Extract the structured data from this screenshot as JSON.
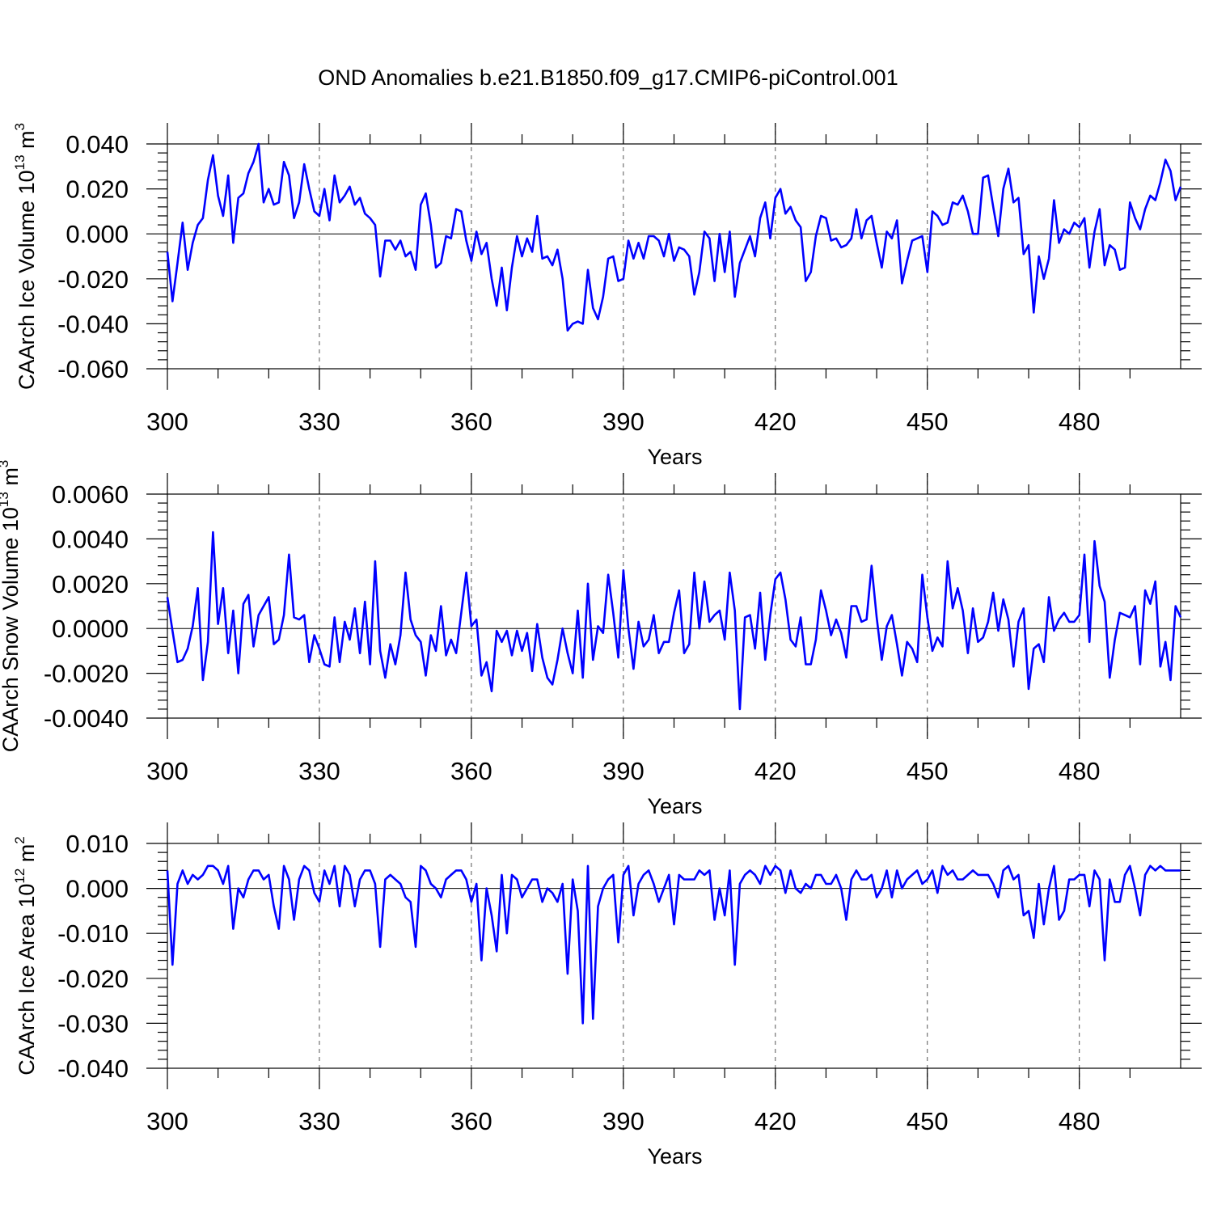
{
  "title": "OND Anomalies b.e21.B1850.f09_g17.CMIP6-piControl.001",
  "colors": {
    "series": "#0000ff",
    "axis": "#000000"
  },
  "chart_data": [
    {
      "type": "line",
      "title": "OND Anomalies b.e21.B1850.f09_g17.CMIP6-piControl.001",
      "xlabel": "Years",
      "ylabel_main": "CAArch Ice Volume 10",
      "ylabel_exp": "13",
      "ylabel_unit": " m",
      "ylabel_unit_exp": "3",
      "xlim": [
        300,
        500
      ],
      "ylim": [
        -0.06,
        0.04
      ],
      "xticks": [
        300,
        330,
        360,
        390,
        420,
        450,
        480
      ],
      "xtick_labels": [
        "300",
        "330",
        "360",
        "390",
        "420",
        "450",
        "480"
      ],
      "yticks": [
        -0.06,
        -0.04,
        -0.02,
        0.0,
        0.02,
        0.04
      ],
      "ytick_labels": [
        "-0.060",
        "-0.040",
        "-0.020",
        "0.000",
        "0.020",
        "0.040"
      ],
      "x_start": 300,
      "values": [
        -0.008,
        -0.03,
        -0.013,
        0.005,
        -0.016,
        -0.004,
        0.004,
        0.007,
        0.024,
        0.035,
        0.017,
        0.008,
        0.026,
        -0.004,
        0.016,
        0.018,
        0.027,
        0.032,
        0.04,
        0.014,
        0.02,
        0.013,
        0.014,
        0.032,
        0.026,
        0.007,
        0.014,
        0.031,
        0.02,
        0.01,
        0.008,
        0.02,
        0.006,
        0.026,
        0.014,
        0.017,
        0.021,
        0.013,
        0.016,
        0.009,
        0.007,
        0.004,
        -0.019,
        -0.003,
        -0.003,
        -0.007,
        -0.003,
        -0.01,
        -0.008,
        -0.016,
        0.013,
        0.018,
        0.004,
        -0.015,
        -0.013,
        -0.001,
        -0.002,
        0.011,
        0.01,
        -0.003,
        -0.012,
        0.001,
        -0.009,
        -0.004,
        -0.02,
        -0.032,
        -0.015,
        -0.034,
        -0.015,
        -0.001,
        -0.01,
        -0.002,
        -0.008,
        0.008,
        -0.011,
        -0.01,
        -0.014,
        -0.007,
        -0.02,
        -0.043,
        -0.04,
        -0.039,
        -0.04,
        -0.016,
        -0.033,
        -0.038,
        -0.028,
        -0.011,
        -0.01,
        -0.021,
        -0.02,
        -0.003,
        -0.011,
        -0.004,
        -0.011,
        -0.001,
        -0.001,
        -0.003,
        -0.01,
        0.0,
        -0.012,
        -0.006,
        -0.007,
        -0.01,
        -0.027,
        -0.017,
        0.001,
        -0.002,
        -0.021,
        0.0,
        -0.017,
        0.001,
        -0.028,
        -0.013,
        -0.007,
        -0.001,
        -0.01,
        0.007,
        0.014,
        -0.002,
        0.016,
        0.02,
        0.009,
        0.012,
        0.006,
        0.003,
        -0.021,
        -0.017,
        -0.001,
        0.008,
        0.007,
        -0.003,
        -0.002,
        -0.006,
        -0.005,
        -0.002,
        0.011,
        -0.002,
        0.006,
        0.008,
        -0.004,
        -0.015,
        0.001,
        -0.002,
        0.006,
        -0.022,
        -0.012,
        -0.003,
        -0.002,
        -0.001,
        -0.017,
        0.01,
        0.008,
        0.004,
        0.005,
        0.014,
        0.013,
        0.017,
        0.01,
        0.0,
        0.0,
        0.025,
        0.026,
        0.012,
        -0.001,
        0.02,
        0.029,
        0.014,
        0.016,
        -0.009,
        -0.005,
        -0.035,
        -0.01,
        -0.02,
        -0.011,
        0.015,
        -0.004,
        0.002,
        0.0,
        0.005,
        0.003,
        0.007,
        -0.015,
        0.001,
        0.011,
        -0.014,
        -0.005,
        -0.007,
        -0.016,
        -0.015,
        0.014,
        0.007,
        0.002,
        0.011,
        0.017,
        0.015,
        0.023,
        0.033,
        0.028,
        0.015,
        0.021
      ]
    },
    {
      "type": "line",
      "title": "",
      "xlabel": "Years",
      "ylabel_main": "CAArch Snow Volume 10",
      "ylabel_exp": "13",
      "ylabel_unit": " m",
      "ylabel_unit_exp": "3",
      "xlim": [
        300,
        500
      ],
      "ylim": [
        -0.004,
        0.006
      ],
      "xticks": [
        300,
        330,
        360,
        390,
        420,
        450,
        480
      ],
      "xtick_labels": [
        "300",
        "330",
        "360",
        "390",
        "420",
        "450",
        "480"
      ],
      "yticks": [
        -0.004,
        -0.002,
        0.0,
        0.002,
        0.004,
        0.006
      ],
      "ytick_labels": [
        "-0.0040",
        "-0.0020",
        "0.0000",
        "0.0020",
        "0.0040",
        "0.0060"
      ],
      "x_start": 300,
      "values": [
        0.0014,
        -0.0001,
        -0.0015,
        -0.0014,
        -0.0009,
        0.0001,
        0.0018,
        -0.0023,
        -0.0006,
        0.0043,
        0.0002,
        0.0018,
        -0.0011,
        0.0008,
        -0.002,
        0.0011,
        0.0015,
        -0.0008,
        0.0006,
        0.001,
        0.0014,
        -0.0007,
        -0.0005,
        0.0006,
        0.0033,
        0.0005,
        0.0004,
        0.0006,
        -0.0015,
        -0.0003,
        -0.0009,
        -0.0016,
        -0.0017,
        0.0005,
        -0.0015,
        0.0003,
        -0.0005,
        0.0009,
        -0.0011,
        0.0012,
        -0.0016,
        0.003,
        -0.001,
        -0.0022,
        -0.0007,
        -0.0016,
        -0.0003,
        0.0025,
        0.0004,
        -0.0003,
        -0.0006,
        -0.0021,
        -0.0003,
        -0.001,
        0.001,
        -0.0012,
        -0.0005,
        -0.0011,
        0.0007,
        0.0025,
        0.0001,
        0.0004,
        -0.0021,
        -0.0015,
        -0.0028,
        -0.0001,
        -0.0006,
        -0.0001,
        -0.0012,
        -0.0001,
        -0.001,
        -0.0002,
        -0.0019,
        0.0002,
        -0.0013,
        -0.0022,
        -0.0025,
        -0.0014,
        0.0,
        -0.0011,
        -0.002,
        0.0008,
        -0.0022,
        0.002,
        -0.0014,
        0.0001,
        -0.0002,
        0.0024,
        0.0007,
        -0.0013,
        0.0026,
        0.0,
        -0.0018,
        0.0003,
        -0.0008,
        -0.0005,
        0.0006,
        -0.0011,
        -0.0006,
        -0.0006,
        0.0007,
        0.0017,
        -0.0011,
        -0.0007,
        0.0025,
        0.0,
        0.0021,
        0.0003,
        0.0006,
        0.0008,
        -0.0005,
        0.0025,
        0.0008,
        -0.0036,
        0.0005,
        0.0006,
        -0.0009,
        0.0016,
        -0.0014,
        0.0006,
        0.0022,
        0.0025,
        0.0013,
        -0.0005,
        -0.0008,
        0.0005,
        -0.0016,
        -0.0016,
        -0.0005,
        0.0017,
        0.0008,
        -0.0003,
        0.0004,
        -0.0002,
        -0.0013,
        0.001,
        0.001,
        0.0003,
        0.0004,
        0.0028,
        0.0005,
        -0.0014,
        0.0001,
        0.0006,
        -0.0007,
        -0.0021,
        -0.0006,
        -0.0009,
        -0.0015,
        0.0024,
        0.0005,
        -0.001,
        -0.0004,
        -0.0008,
        0.003,
        0.0009,
        0.0018,
        0.0008,
        -0.0011,
        0.0009,
        -0.0006,
        -0.0004,
        0.0003,
        0.0016,
        -0.0001,
        0.0013,
        0.0004,
        -0.0017,
        0.0003,
        0.0009,
        -0.0027,
        -0.0009,
        -0.0007,
        -0.0015,
        0.0014,
        -0.0001,
        0.0004,
        0.0007,
        0.0003,
        0.0003,
        0.0006,
        0.0033,
        -0.0006,
        0.0039,
        0.0019,
        0.0012,
        -0.0022,
        -0.0005,
        0.0007,
        0.0006,
        0.0005,
        0.001,
        -0.0016,
        0.0017,
        0.0011,
        0.0021,
        -0.0017,
        -0.0006,
        -0.0023,
        0.001,
        0.0005
      ]
    },
    {
      "type": "line",
      "title": "",
      "xlabel": "Years",
      "ylabel_main": "CAArch Ice Area 10",
      "ylabel_exp": "12",
      "ylabel_unit": " m",
      "ylabel_unit_exp": "2",
      "xlim": [
        300,
        500
      ],
      "ylim": [
        -0.04,
        0.01
      ],
      "xticks": [
        300,
        330,
        360,
        390,
        420,
        450,
        480
      ],
      "xtick_labels": [
        "300",
        "330",
        "360",
        "390",
        "420",
        "450",
        "480"
      ],
      "yticks": [
        -0.04,
        -0.03,
        -0.02,
        -0.01,
        0.0,
        0.01
      ],
      "ytick_labels": [
        "-0.040",
        "-0.030",
        "-0.020",
        "-0.010",
        "0.000",
        "0.010"
      ],
      "x_start": 300,
      "values": [
        0.004,
        -0.017,
        0.001,
        0.004,
        0.001,
        0.003,
        0.002,
        0.003,
        0.005,
        0.005,
        0.004,
        0.001,
        0.005,
        -0.009,
        0.0,
        -0.002,
        0.002,
        0.004,
        0.004,
        0.002,
        0.003,
        -0.004,
        -0.009,
        0.005,
        0.002,
        -0.007,
        0.002,
        0.005,
        0.004,
        -0.001,
        -0.003,
        0.004,
        0.001,
        0.005,
        -0.004,
        0.005,
        0.003,
        -0.004,
        0.002,
        0.004,
        0.004,
        0.001,
        -0.013,
        0.002,
        0.003,
        0.002,
        0.001,
        -0.002,
        -0.003,
        -0.013,
        0.005,
        0.004,
        0.001,
        0.0,
        -0.002,
        0.002,
        0.003,
        0.004,
        0.004,
        0.002,
        -0.003,
        0.001,
        -0.016,
        0.0,
        -0.006,
        -0.014,
        0.003,
        -0.01,
        0.003,
        0.002,
        -0.002,
        0.0,
        0.002,
        0.002,
        -0.003,
        0.0,
        -0.001,
        -0.003,
        0.001,
        -0.019,
        0.002,
        -0.005,
        -0.03,
        0.005,
        -0.029,
        -0.004,
        0.0,
        0.002,
        0.003,
        -0.012,
        0.003,
        0.005,
        -0.006,
        0.001,
        0.003,
        0.004,
        0.001,
        -0.003,
        0.0,
        0.003,
        -0.008,
        0.003,
        0.002,
        0.002,
        0.002,
        0.004,
        0.003,
        0.004,
        -0.007,
        0.0,
        -0.006,
        0.004,
        -0.017,
        0.001,
        0.003,
        0.004,
        0.003,
        0.001,
        0.005,
        0.003,
        0.005,
        0.004,
        -0.001,
        0.004,
        0.0,
        -0.001,
        0.001,
        0.0,
        0.003,
        0.003,
        0.001,
        0.001,
        0.003,
        0.0,
        -0.007,
        0.002,
        0.004,
        0.002,
        0.002,
        0.003,
        -0.002,
        0.0,
        0.004,
        -0.002,
        0.004,
        0.0,
        0.002,
        0.003,
        0.004,
        0.001,
        0.002,
        0.004,
        -0.001,
        0.005,
        0.003,
        0.004,
        0.002,
        0.002,
        0.003,
        0.004,
        0.003,
        0.003,
        0.003,
        0.001,
        -0.002,
        0.004,
        0.005,
        0.002,
        0.003,
        -0.006,
        -0.005,
        -0.011,
        0.001,
        -0.008,
        0.0,
        0.005,
        -0.007,
        -0.005,
        0.002,
        0.002,
        0.003,
        0.003,
        -0.004,
        0.004,
        0.002,
        -0.016,
        0.002,
        -0.003,
        -0.003,
        0.003,
        0.005,
        0.0,
        -0.006,
        0.003,
        0.005,
        0.004,
        0.005,
        0.004,
        0.004,
        0.004,
        0.004
      ]
    }
  ]
}
